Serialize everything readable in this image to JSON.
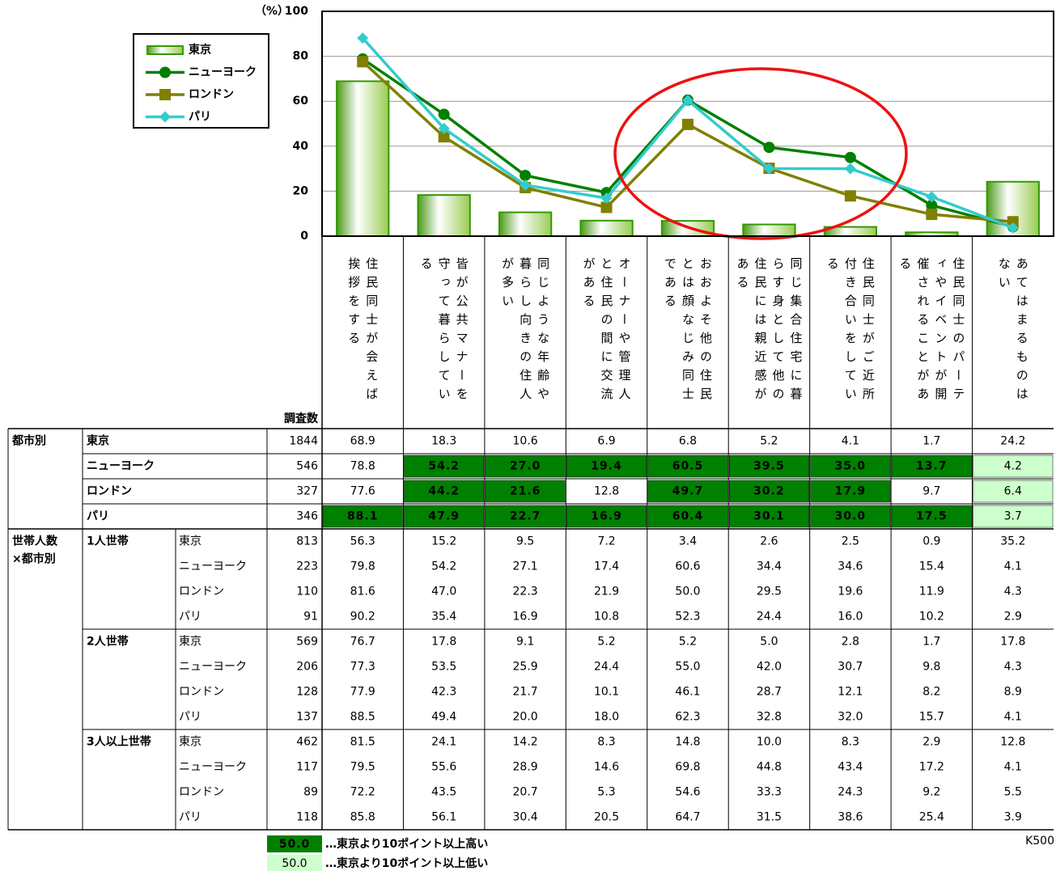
{
  "chart_data": {
    "type": "bar_line",
    "y_axis_label": "（%）",
    "categories": [
      "住民同士が会えば挨拶をする",
      "皆が公共マナーを守って暮らしている",
      "同じような年齢や暮らし向きの住人が多い",
      "オーナーや管理人と住民の間に交流がある",
      "おおよそ他の住民とは顔なじみ同士である",
      "同じ集合住宅に暮らす身として他の住民には親近感がある",
      "住民同士がご近所付き合いをしている",
      "住民同士のパーティやイベントが開催されることがある",
      "あてはまるものはない"
    ],
    "ylim": [
      0,
      100
    ],
    "yticks": [
      0,
      20,
      40,
      60,
      80,
      100
    ],
    "grid": true,
    "legend": "top-left",
    "series": [
      {
        "name": "東京",
        "type": "bar",
        "color": "#339900",
        "values": [
          68.9,
          18.3,
          10.6,
          6.9,
          6.8,
          5.2,
          4.1,
          1.7,
          24.2
        ],
        "value_labels": [
          "68.9",
          "18.3",
          "10.6",
          "6.9",
          "6.8",
          "5.2",
          "4.1",
          "1.7",
          "24.2"
        ]
      },
      {
        "name": "ニューヨーク",
        "type": "line",
        "marker": "circle",
        "color": "#008000",
        "values": [
          78.8,
          54.2,
          27.0,
          19.4,
          60.5,
          39.5,
          35.0,
          13.7,
          4.2
        ],
        "value_labels": [
          "78.8",
          "54.2",
          "27.0",
          "19.4",
          "60.5",
          "39.5",
          "35.0",
          "13.7",
          "4.2"
        ],
        "highlight": [
          null,
          "high",
          "high",
          "high",
          "high",
          "high",
          "high",
          "high",
          "low"
        ]
      },
      {
        "name": "ロンドン",
        "type": "line",
        "marker": "square",
        "color": "#808000",
        "values": [
          77.6,
          44.2,
          21.6,
          12.8,
          49.7,
          30.2,
          17.9,
          9.7,
          6.4
        ],
        "value_labels": [
          "77.6",
          "44.2",
          "21.6",
          "12.8",
          "49.7",
          "30.2",
          "17.9",
          "9.7",
          "6.4"
        ],
        "highlight": [
          null,
          "high",
          "high",
          null,
          "high",
          "high",
          "high",
          null,
          "low"
        ]
      },
      {
        "name": "パリ",
        "type": "line",
        "marker": "diamond",
        "color": "#33cccc",
        "values": [
          88.1,
          47.9,
          22.7,
          16.9,
          60.4,
          30.1,
          30.0,
          17.5,
          3.7
        ],
        "value_labels": [
          "88.1",
          "47.9",
          "22.7",
          "16.9",
          "60.4",
          "30.1",
          "30.0",
          "17.5",
          "3.7"
        ],
        "highlight": [
          "high",
          "high",
          "high",
          "high",
          "high",
          "high",
          "high",
          "high",
          "low"
        ]
      }
    ]
  },
  "table": {
    "n_header": "調査数",
    "city_section": {
      "label": "都市別",
      "n": [
        1844,
        546,
        327,
        346
      ]
    },
    "household_section": {
      "label": [
        "世帯人数",
        "×都市別"
      ],
      "groups": [
        {
          "label": "1人世帯",
          "rows": [
            {
              "city": "東京",
              "n": 813,
              "values": [
                "56.3",
                "15.2",
                "9.5",
                "7.2",
                "3.4",
                "2.6",
                "2.5",
                "0.9",
                "35.2"
              ]
            },
            {
              "city": "ニューヨーク",
              "n": 223,
              "values": [
                "79.8",
                "54.2",
                "27.1",
                "17.4",
                "60.6",
                "34.4",
                "34.6",
                "15.4",
                "4.1"
              ]
            },
            {
              "city": "ロンドン",
              "n": 110,
              "values": [
                "81.6",
                "47.0",
                "22.3",
                "21.9",
                "50.0",
                "29.5",
                "19.6",
                "11.9",
                "4.3"
              ]
            },
            {
              "city": "パリ",
              "n": 91,
              "values": [
                "90.2",
                "35.4",
                "16.9",
                "10.8",
                "52.3",
                "24.4",
                "16.0",
                "10.2",
                "2.9"
              ]
            }
          ]
        },
        {
          "label": "2人世帯",
          "rows": [
            {
              "city": "東京",
              "n": 569,
              "values": [
                "76.7",
                "17.8",
                "9.1",
                "5.2",
                "5.2",
                "5.0",
                "2.8",
                "1.7",
                "17.8"
              ]
            },
            {
              "city": "ニューヨーク",
              "n": 206,
              "values": [
                "77.3",
                "53.5",
                "25.9",
                "24.4",
                "55.0",
                "42.0",
                "30.7",
                "9.8",
                "4.3"
              ]
            },
            {
              "city": "ロンドン",
              "n": 128,
              "values": [
                "77.9",
                "42.3",
                "21.7",
                "10.1",
                "46.1",
                "28.7",
                "12.1",
                "8.2",
                "8.9"
              ]
            },
            {
              "city": "パリ",
              "n": 137,
              "values": [
                "88.5",
                "49.4",
                "20.0",
                "18.0",
                "62.3",
                "32.8",
                "32.0",
                "15.7",
                "4.1"
              ]
            }
          ]
        },
        {
          "label": "3人以上世帯",
          "rows": [
            {
              "city": "東京",
              "n": 462,
              "values": [
                "81.5",
                "24.1",
                "14.2",
                "8.3",
                "14.8",
                "10.0",
                "8.3",
                "2.9",
                "12.8"
              ]
            },
            {
              "city": "ニューヨーク",
              "n": 117,
              "values": [
                "79.5",
                "55.6",
                "28.9",
                "14.6",
                "69.8",
                "44.8",
                "43.4",
                "17.2",
                "4.1"
              ]
            },
            {
              "city": "ロンドン",
              "n": 89,
              "values": [
                "72.2",
                "43.5",
                "20.7",
                "5.3",
                "54.6",
                "33.3",
                "24.3",
                "9.2",
                "5.5"
              ]
            },
            {
              "city": "パリ",
              "n": 118,
              "values": [
                "85.8",
                "56.1",
                "30.4",
                "20.5",
                "64.7",
                "31.5",
                "38.6",
                "25.4",
                "3.9"
              ]
            }
          ]
        }
      ]
    },
    "key": [
      {
        "sample": "50.0",
        "text": "…東京より10ポイント以上高い",
        "style": "high"
      },
      {
        "sample": "50.0",
        "text": "…東京より10ポイント以上低い",
        "style": "low"
      }
    ],
    "code": "K500"
  }
}
